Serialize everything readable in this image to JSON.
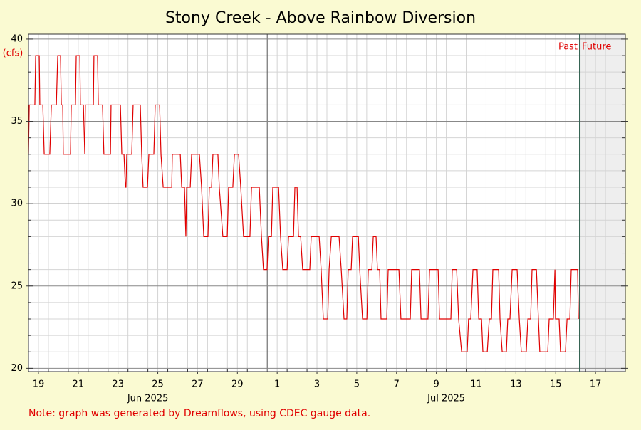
{
  "chart_data": {
    "type": "line",
    "title": "Stony Creek - Above Rainbow Diversion",
    "y_label": "(cfs)",
    "note": "Note: graph was generated by Dreamflows, using CDEC gauge data.",
    "color": "#e00000",
    "x": [
      19.0,
      19.04,
      19.32,
      19.36,
      19.54,
      19.57,
      19.72,
      19.79,
      20.07,
      20.15,
      20.4,
      20.47,
      20.61,
      20.65,
      20.72,
      20.75,
      21.11,
      21.15,
      21.36,
      21.4,
      21.58,
      21.61,
      21.76,
      21.83,
      21.86,
      22.26,
      22.29,
      22.47,
      22.51,
      22.72,
      22.79,
      23.12,
      23.15,
      23.62,
      23.69,
      23.8,
      23.87,
      23.9,
      23.94,
      24.19,
      24.26,
      24.62,
      24.69,
      24.76,
      24.98,
      25.05,
      25.3,
      25.37,
      25.59,
      25.66,
      25.77,
      26.2,
      26.23,
      26.63,
      26.7,
      26.84,
      26.91,
      26.95,
      27.13,
      27.2,
      27.59,
      27.7,
      27.81,
      28.02,
      28.09,
      28.2,
      28.27,
      28.52,
      28.59,
      28.77,
      28.99,
      29.06,
      29.27,
      29.35,
      29.56,
      29.67,
      29.81,
      30.13,
      30.21,
      30.6,
      30.71,
      30.81,
      30.99,
      31.06,
      31.21,
      31.28,
      31.57,
      31.67,
      31.78,
      32.0,
      32.07,
      32.32,
      32.39,
      32.5,
      32.57,
      32.68,
      32.78,
      33.14,
      33.21,
      33.61,
      33.71,
      33.82,
      34.04,
      34.11,
      34.22,
      34.61,
      34.72,
      34.86,
      35.0,
      35.07,
      35.22,
      35.29,
      35.58,
      35.65,
      35.79,
      36.01,
      36.08,
      36.26,
      36.33,
      36.47,
      36.54,
      36.65,
      36.72,
      37.01,
      37.08,
      37.62,
      37.72,
      38.19,
      38.26,
      38.65,
      38.73,
      39.08,
      39.16,
      39.59,
      39.66,
      40.23,
      40.3,
      40.52,
      40.62,
      40.77,
      41.05,
      41.12,
      41.23,
      41.34,
      41.55,
      41.63,
      41.77,
      41.84,
      42.06,
      42.16,
      42.27,
      42.34,
      42.63,
      42.7,
      42.81,
      43.02,
      43.09,
      43.2,
      43.31,
      43.56,
      43.67,
      43.77,
      44.02,
      44.1,
      44.24,
      44.31,
      44.53,
      44.63,
      44.7,
      45.1,
      45.17,
      45.38,
      45.46,
      45.49,
      45.67,
      45.74,
      45.99,
      46.07,
      46.21,
      46.28,
      46.6,
      46.64
    ],
    "values": [
      33,
      36,
      36,
      39,
      39,
      36,
      36,
      33,
      33,
      36,
      36,
      39,
      39,
      36,
      36,
      33,
      33,
      36,
      36,
      39,
      39,
      36,
      36,
      33,
      36,
      36,
      39,
      39,
      36,
      36,
      33,
      33,
      36,
      36,
      33,
      33,
      31,
      31,
      33,
      33,
      36,
      36,
      33,
      31,
      31,
      33,
      33,
      36,
      36,
      33,
      31,
      31,
      33,
      33,
      31,
      31,
      28,
      31,
      31,
      33,
      33,
      31,
      28,
      28,
      31,
      31,
      33,
      33,
      31,
      28,
      28,
      31,
      31,
      33,
      33,
      31,
      28,
      28,
      31,
      31,
      28,
      26,
      26,
      28,
      28,
      31,
      31,
      28,
      26,
      26,
      28,
      28,
      31,
      31,
      28,
      28,
      26,
      26,
      28,
      28,
      26,
      23,
      23,
      26,
      28,
      28,
      26,
      23,
      23,
      26,
      26,
      28,
      28,
      26,
      23,
      23,
      26,
      26,
      28,
      28,
      26,
      26,
      23,
      23,
      26,
      26,
      23,
      23,
      26,
      26,
      23,
      23,
      26,
      26,
      23,
      23,
      26,
      26,
      23,
      21,
      21,
      23,
      23,
      26,
      26,
      23,
      23,
      21,
      21,
      23,
      23,
      26,
      26,
      23,
      21,
      21,
      23,
      23,
      26,
      26,
      23,
      21,
      21,
      23,
      23,
      26,
      26,
      23,
      21,
      21,
      23,
      23,
      26,
      23,
      23,
      21,
      21,
      23,
      23,
      26,
      26,
      23
    ],
    "xlim": [
      19,
      49
    ],
    "xticks": [
      {
        "value": 19.5,
        "label": "19"
      },
      {
        "value": 21.5,
        "label": "21"
      },
      {
        "value": 23.5,
        "label": "23"
      },
      {
        "value": 25.5,
        "label": "25"
      },
      {
        "value": 27.5,
        "label": "27"
      },
      {
        "value": 29.5,
        "label": "29"
      },
      {
        "value": 31.5,
        "label": "1"
      },
      {
        "value": 33.5,
        "label": "3"
      },
      {
        "value": 35.5,
        "label": "5"
      },
      {
        "value": 37.5,
        "label": "7"
      },
      {
        "value": 39.5,
        "label": "9"
      },
      {
        "value": 41.5,
        "label": "11"
      },
      {
        "value": 43.5,
        "label": "13"
      },
      {
        "value": 45.5,
        "label": "15"
      },
      {
        "value": 47.5,
        "label": "17"
      }
    ],
    "xminor": [
      20,
      21,
      22,
      23,
      24,
      25,
      26,
      27,
      28,
      29,
      30,
      32,
      33,
      34,
      35,
      36,
      37,
      38,
      39,
      40,
      41,
      42,
      43,
      44,
      45,
      46,
      47,
      48
    ],
    "month_line": 31,
    "month_labels": [
      {
        "value": 25,
        "label": "Jun 2025"
      },
      {
        "value": 40,
        "label": "Jul 2025"
      }
    ],
    "ylim": [
      19.8,
      40.3
    ],
    "yticks": [
      20,
      25,
      30,
      35,
      40
    ],
    "yminor": [
      21,
      22,
      23,
      24,
      26,
      27,
      28,
      29,
      31,
      32,
      33,
      34,
      36,
      37,
      38,
      39
    ],
    "grid": true,
    "now": 46.71,
    "past_label": "Past",
    "future_label": "Future"
  }
}
